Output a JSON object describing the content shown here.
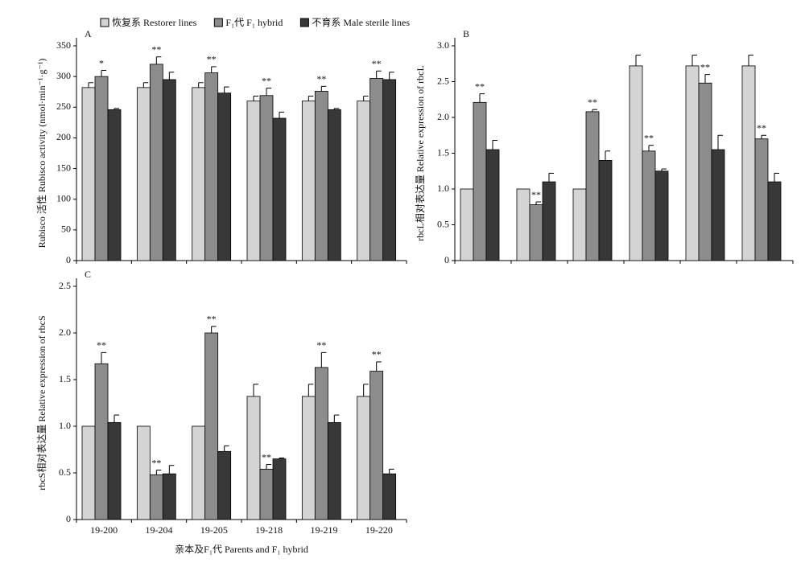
{
  "chart_data": [
    {
      "type": "bar",
      "panel": "A",
      "ylabel": "Rubisco 活性 Rubisco activity (nmol·min⁻¹·g⁻¹)",
      "ylim": [
        0,
        350
      ],
      "yticks": [
        0,
        50,
        100,
        150,
        200,
        250,
        300,
        350
      ],
      "series": [
        {
          "name": "恢复系 Restorer lines",
          "color": "#d4d4d4",
          "values": [
            282,
            282,
            282,
            260,
            260,
            260
          ],
          "errors": [
            8,
            8,
            8,
            8,
            8,
            8
          ]
        },
        {
          "name": "F₁代 F₁ hybrid",
          "color": "#8c8c8c",
          "values": [
            300,
            320,
            306,
            269,
            276,
            297
          ],
          "errors": [
            10,
            12,
            10,
            12,
            8,
            12
          ],
          "annotations": [
            "*",
            "**",
            "**",
            "**",
            "**",
            "**"
          ]
        },
        {
          "name": "不育系 Male sterile lines",
          "color": "#383838",
          "values": [
            246,
            295,
            273,
            232,
            246,
            295
          ],
          "errors": [
            2,
            12,
            10,
            10,
            2,
            12
          ]
        }
      ]
    },
    {
      "type": "bar",
      "panel": "B",
      "ylabel": "rbcL相对表达量 Relative expression of rbcL",
      "ylim": [
        0,
        3
      ],
      "yticks": [
        0,
        0.5,
        {
          "value": 1,
          "label": "1.0"
        },
        1.5,
        {
          "value": 2,
          "label": "2.0"
        },
        2.5,
        {
          "value": 3,
          "label": "3.0"
        }
      ],
      "series": [
        {
          "color": "#d4d4d4",
          "values": [
            1.0,
            1.0,
            1.0,
            2.72,
            2.72,
            2.72
          ],
          "errors": [
            0,
            0,
            0,
            0.15,
            0.15,
            0.15
          ]
        },
        {
          "color": "#8c8c8c",
          "values": [
            2.21,
            0.78,
            2.08,
            1.53,
            2.48,
            1.7
          ],
          "errors": [
            0.12,
            0.04,
            0.03,
            0.08,
            0.12,
            0.05
          ],
          "annotations": [
            "**",
            "**",
            "**",
            "**",
            "**",
            "**"
          ]
        },
        {
          "color": "#383838",
          "values": [
            1.55,
            1.1,
            1.4,
            1.25,
            1.55,
            1.1
          ],
          "errors": [
            0.13,
            0.12,
            0.13,
            0.03,
            0.2,
            0.12
          ]
        }
      ]
    },
    {
      "type": "bar",
      "panel": "C",
      "ylabel": "rbcS相对表达量 Relative expression of rbcS",
      "xlabel": "亲本及F₁代 Parents and F₁ hybrid",
      "categories": [
        "19-200",
        "19-204",
        "19-205",
        "19-218",
        "19-219",
        "19-220"
      ],
      "ylim": [
        0,
        2.5
      ],
      "yticks": [
        0,
        0.5,
        {
          "value": 1,
          "label": "1.0"
        },
        1.5,
        {
          "value": 2,
          "label": "2.0"
        },
        2.5
      ],
      "series": [
        {
          "color": "#d4d4d4",
          "values": [
            1.0,
            1.0,
            1.0,
            1.32,
            1.32,
            1.32
          ],
          "errors": [
            0,
            0,
            0,
            0.13,
            0.13,
            0.13
          ]
        },
        {
          "color": "#8c8c8c",
          "values": [
            1.67,
            0.48,
            2.0,
            0.54,
            1.63,
            1.59
          ],
          "errors": [
            0.12,
            0.05,
            0.07,
            0.05,
            0.16,
            0.1
          ],
          "annotations": [
            "**",
            "**",
            "**",
            "**",
            "**",
            "**"
          ]
        },
        {
          "color": "#383838",
          "values": [
            1.04,
            0.49,
            0.73,
            0.65,
            1.04,
            0.49
          ],
          "errors": [
            0.08,
            0.09,
            0.06,
            0.01,
            0.08,
            0.05
          ]
        }
      ]
    }
  ]
}
